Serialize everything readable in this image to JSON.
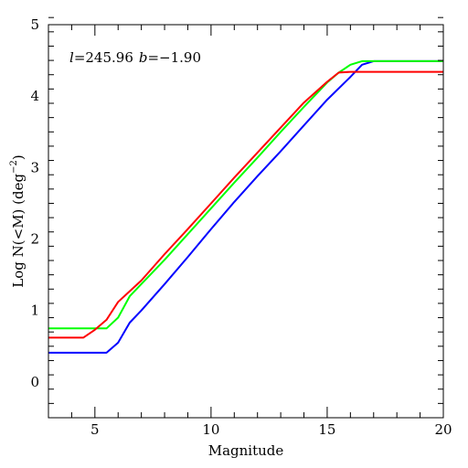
{
  "chart_data": {
    "type": "line",
    "title": "",
    "annotation": {
      "l_symbol": "l",
      "l_value": "=245.96",
      "b_symbol": "b",
      "b_value": "=−1.90"
    },
    "xlabel": "Magnitude",
    "ylabel": {
      "prefix": "Log N(<M) (deg",
      "superscript": "−2",
      "suffix": ")"
    },
    "xlim": [
      3,
      20
    ],
    "ylim": [
      -0.5,
      5
    ],
    "x_ticks": [
      5,
      10,
      15,
      20
    ],
    "x_tick_labels": [
      "5",
      "10",
      "15",
      "20"
    ],
    "y_ticks": [
      0,
      1,
      2,
      3,
      4,
      5
    ],
    "y_tick_labels": [
      "0",
      "1",
      "2",
      "3",
      "4",
      "5"
    ],
    "x_minor_step": 1,
    "y_minor_step": 0.2,
    "grid": false,
    "series": [
      {
        "color": "#0000ff",
        "x": [
          3.0,
          5.5,
          6.0,
          6.5,
          7.0,
          8.0,
          9.0,
          10.0,
          11.0,
          12.0,
          13.0,
          14.0,
          15.0,
          16.0,
          16.5,
          17.0,
          20.0
        ],
        "y": [
          0.41,
          0.41,
          0.55,
          0.83,
          1.0,
          1.37,
          1.75,
          2.14,
          2.52,
          2.88,
          3.23,
          3.59,
          3.95,
          4.27,
          4.44,
          4.49,
          4.49
        ]
      },
      {
        "color": "#00ff00",
        "x": [
          3.0,
          5.5,
          6.0,
          6.5,
          7.0,
          8.0,
          9.0,
          10.0,
          11.0,
          12.0,
          13.0,
          14.0,
          15.0,
          15.5,
          16.0,
          16.5,
          20.0
        ],
        "y": [
          0.75,
          0.75,
          0.9,
          1.2,
          1.37,
          1.71,
          2.07,
          2.43,
          2.79,
          3.14,
          3.5,
          3.85,
          4.19,
          4.33,
          4.44,
          4.49,
          4.49
        ]
      },
      {
        "color": "#ff0000",
        "x": [
          3.0,
          4.5,
          5.0,
          5.5,
          6.0,
          6.5,
          7.0,
          8.0,
          9.0,
          10.0,
          11.0,
          12.0,
          13.0,
          14.0,
          15.0,
          15.5,
          16.0,
          20.0
        ],
        "y": [
          0.62,
          0.62,
          0.73,
          0.87,
          1.12,
          1.27,
          1.42,
          1.79,
          2.14,
          2.5,
          2.86,
          3.21,
          3.56,
          3.91,
          4.2,
          4.33,
          4.34,
          4.34
        ]
      }
    ]
  }
}
